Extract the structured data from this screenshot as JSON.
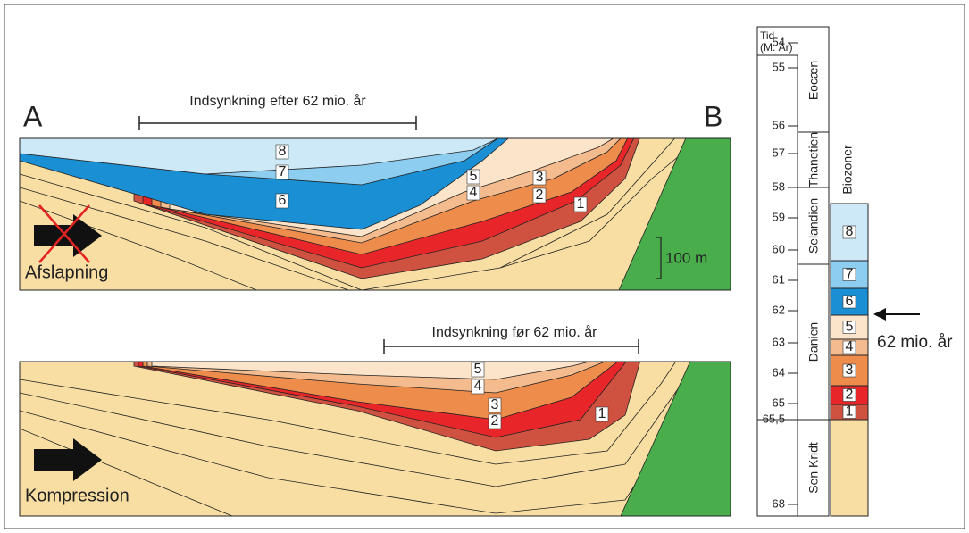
{
  "section_relaxation": {
    "label_a": "A",
    "label_b": "B",
    "bracket_label": "Indsynkning efter 62 mio. år",
    "layer_labels": [
      "8",
      "7",
      "6",
      "5",
      "4",
      "3",
      "2",
      "1"
    ],
    "arrow_label": "Afslapning",
    "scale_label": "100 m"
  },
  "section_compression": {
    "bracket_label": "Indsynkning før 62 mio. år",
    "layer_labels": [
      "5",
      "4",
      "3",
      "2",
      "1"
    ],
    "arrow_label": "Kompression"
  },
  "column": {
    "title_line1": "Tid",
    "title_line2": "(M. År)",
    "ticks": [
      54,
      55,
      56,
      57,
      58,
      59,
      60,
      61,
      62,
      63,
      64,
      65,
      {
        "value": 65.5,
        "label": "65,5"
      },
      68
    ],
    "stages": [
      "Eocæn",
      "Thanetien",
      "Selandien",
      "Danien",
      "Sen Kridt"
    ],
    "biozone_title": "Biozoner",
    "zones": [
      "8",
      "7",
      "6",
      "5",
      "4",
      "3",
      "2",
      "1"
    ],
    "marker_label": "62 mio. år"
  }
}
